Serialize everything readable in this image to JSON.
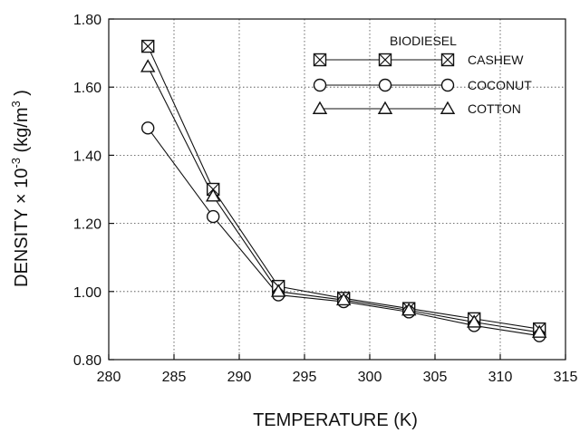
{
  "chart_data": {
    "type": "line",
    "xlabel": "TEMPERATURE (K)",
    "ylabel": {
      "prefix": "DENSITY ",
      "times": "×",
      "ten": " 10",
      "exp1": "-3",
      "unit_open": " (kg/m",
      "exp2": "3",
      "unit_close": " )"
    },
    "xlim": [
      280,
      315
    ],
    "ylim": [
      0.8,
      1.8
    ],
    "x_ticks": [
      280,
      285,
      290,
      295,
      300,
      305,
      310,
      315
    ],
    "y_ticks": [
      0.8,
      1.0,
      1.2,
      1.4,
      1.6,
      1.8
    ],
    "y_tick_labels": [
      "0.80",
      "1.00",
      "1.20",
      "1.40",
      "1.60",
      "1.80"
    ],
    "grid": true,
    "legend_title": "BIODIESEL",
    "legend_position": "top-right",
    "series": [
      {
        "name": "CASHEW",
        "marker": "square-x",
        "x": [
          283,
          288,
          293,
          298,
          303,
          308,
          313
        ],
        "y": [
          1.72,
          1.3,
          1.015,
          0.98,
          0.95,
          0.92,
          0.89
        ]
      },
      {
        "name": "COCONUT",
        "marker": "circle",
        "x": [
          283,
          288,
          293,
          298,
          303,
          308,
          313
        ],
        "y": [
          1.48,
          1.22,
          0.99,
          0.97,
          0.94,
          0.9,
          0.87
        ]
      },
      {
        "name": "COTTON",
        "marker": "triangle",
        "x": [
          283,
          288,
          293,
          298,
          303,
          308,
          313
        ],
        "y": [
          1.66,
          1.28,
          1.0,
          0.975,
          0.945,
          0.91,
          0.88
        ]
      }
    ]
  }
}
